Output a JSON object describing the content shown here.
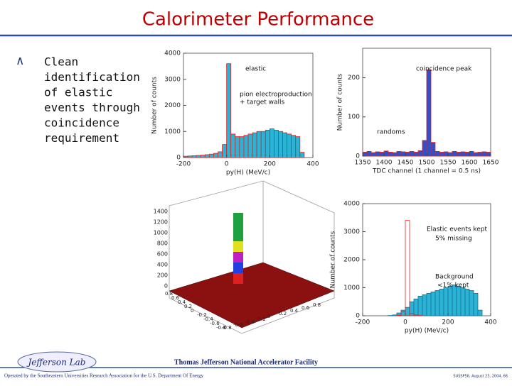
{
  "slide": {
    "title": "Calorimeter Performance",
    "bullet": [
      "Clean",
      "identification",
      "of elastic",
      "events through",
      "coincidence",
      "requirement"
    ],
    "logo": "Jefferson Lab",
    "footer_center": "Thomas Jefferson National Accelerator Facility",
    "footer_left": "Operated by the Southeastern Universities Research Association for the U.S. Department Of Energy",
    "footer_right": "SUSSP58, August 23, 2004, 66"
  },
  "chart_data": [
    {
      "type": "histogram",
      "xlabel": "py(H)  (MeV/c)",
      "ylabel": "Number of counts",
      "annotations": [
        "elastic",
        "pion electroproduction",
        "+ target walls"
      ],
      "bins": [
        -200,
        -180,
        -160,
        -140,
        -120,
        -100,
        -80,
        -60,
        -40,
        -20,
        0,
        20,
        40,
        60,
        80,
        100,
        120,
        140,
        160,
        180,
        200,
        220,
        240,
        260,
        280,
        300,
        320,
        340,
        360,
        380,
        400
      ],
      "series": [
        {
          "color": "#2ab3d4",
          "edgecolor": "#e02020",
          "values": [
            50,
            60,
            70,
            80,
            90,
            110,
            130,
            160,
            220,
            500,
            3600,
            900,
            800,
            800,
            850,
            900,
            950,
            1000,
            1000,
            1050,
            1100,
            1050,
            1000,
            950,
            900,
            850,
            800,
            200,
            0,
            0
          ]
        }
      ],
      "xlim": [
        -200,
        400
      ],
      "xticks": [
        -200,
        0,
        200,
        400
      ],
      "ylim": [
        0,
        4000
      ],
      "yticks": [
        0,
        1000,
        2000,
        3000,
        4000
      ]
    },
    {
      "type": "histogram",
      "xlabel": "TDC channel  (1 channel = 0.5 ns)",
      "ylabel": "Number of counts",
      "annotations": [
        "coincidence peak",
        "randoms"
      ],
      "bins": [
        1350,
        1360,
        1370,
        1380,
        1390,
        1400,
        1410,
        1420,
        1430,
        1440,
        1450,
        1460,
        1470,
        1480,
        1490,
        1500,
        1510,
        1520,
        1530,
        1540,
        1550,
        1560,
        1570,
        1580,
        1590,
        1600,
        1610,
        1620,
        1630,
        1640,
        1650
      ],
      "series": [
        {
          "color": "#3050c8",
          "edgecolor": "#e02020",
          "values": [
            10,
            12,
            9,
            11,
            10,
            13,
            10,
            9,
            12,
            11,
            10,
            12,
            10,
            14,
            40,
            220,
            35,
            12,
            10,
            11,
            9,
            12,
            10,
            11,
            10,
            12,
            9,
            10,
            11,
            10
          ]
        }
      ],
      "xlim": [
        1350,
        1650
      ],
      "xticks": [
        1350,
        1400,
        1450,
        1500,
        1550,
        1600,
        1650
      ],
      "ylim": [
        0,
        275
      ],
      "yticks": [
        0,
        100,
        200
      ]
    },
    {
      "type": "histogram",
      "xlabel": "py(H)  (MeV/c)",
      "ylabel": "Number of counts",
      "annotations": [
        "Elastic events kept",
        "5% missing",
        "Background",
        "<1% kept"
      ],
      "bins": [
        -200,
        -180,
        -160,
        -140,
        -120,
        -100,
        -80,
        -60,
        -40,
        -20,
        0,
        20,
        40,
        60,
        80,
        100,
        120,
        140,
        160,
        180,
        200,
        220,
        240,
        260,
        280,
        300,
        320,
        340,
        360,
        380,
        400
      ],
      "series": [
        {
          "color": "#2ab3d4",
          "edgecolor": "#1a6f9a",
          "values": [
            0,
            0,
            0,
            0,
            0,
            0,
            10,
            30,
            100,
            200,
            300,
            500,
            600,
            700,
            750,
            800,
            850,
            900,
            950,
            1000,
            1050,
            1100,
            1050,
            1000,
            950,
            900,
            800,
            200,
            0,
            0
          ]
        },
        {
          "color": "none",
          "edgecolor": "#e02020",
          "values": [
            0,
            0,
            0,
            0,
            0,
            0,
            0,
            0,
            20,
            150,
            3400,
            80,
            30,
            10,
            0,
            0,
            0,
            0,
            0,
            0,
            0,
            0,
            0,
            0,
            0,
            0,
            0,
            0,
            0,
            0
          ]
        }
      ],
      "xlim": [
        -200,
        400
      ],
      "xticks": [
        -200,
        0,
        200,
        400
      ],
      "ylim": [
        0,
        4000
      ],
      "yticks": [
        0,
        1000,
        2000,
        3000,
        4000
      ]
    }
  ],
  "lego_plot": {
    "zticks": [
      "1400",
      "1200",
      "1000",
      "800",
      "600",
      "400",
      "200",
      "0"
    ],
    "xticks": [
      "0.8",
      "0.6",
      "0.4",
      "0.2",
      "0",
      "-0.2",
      "-0.4",
      "-0.6",
      "-0.8"
    ],
    "yticks": [
      "-0.8",
      "-0.6",
      "-0.4",
      "-0.2",
      "0",
      "0.2",
      "0.4",
      "0.6",
      "0.8"
    ]
  }
}
